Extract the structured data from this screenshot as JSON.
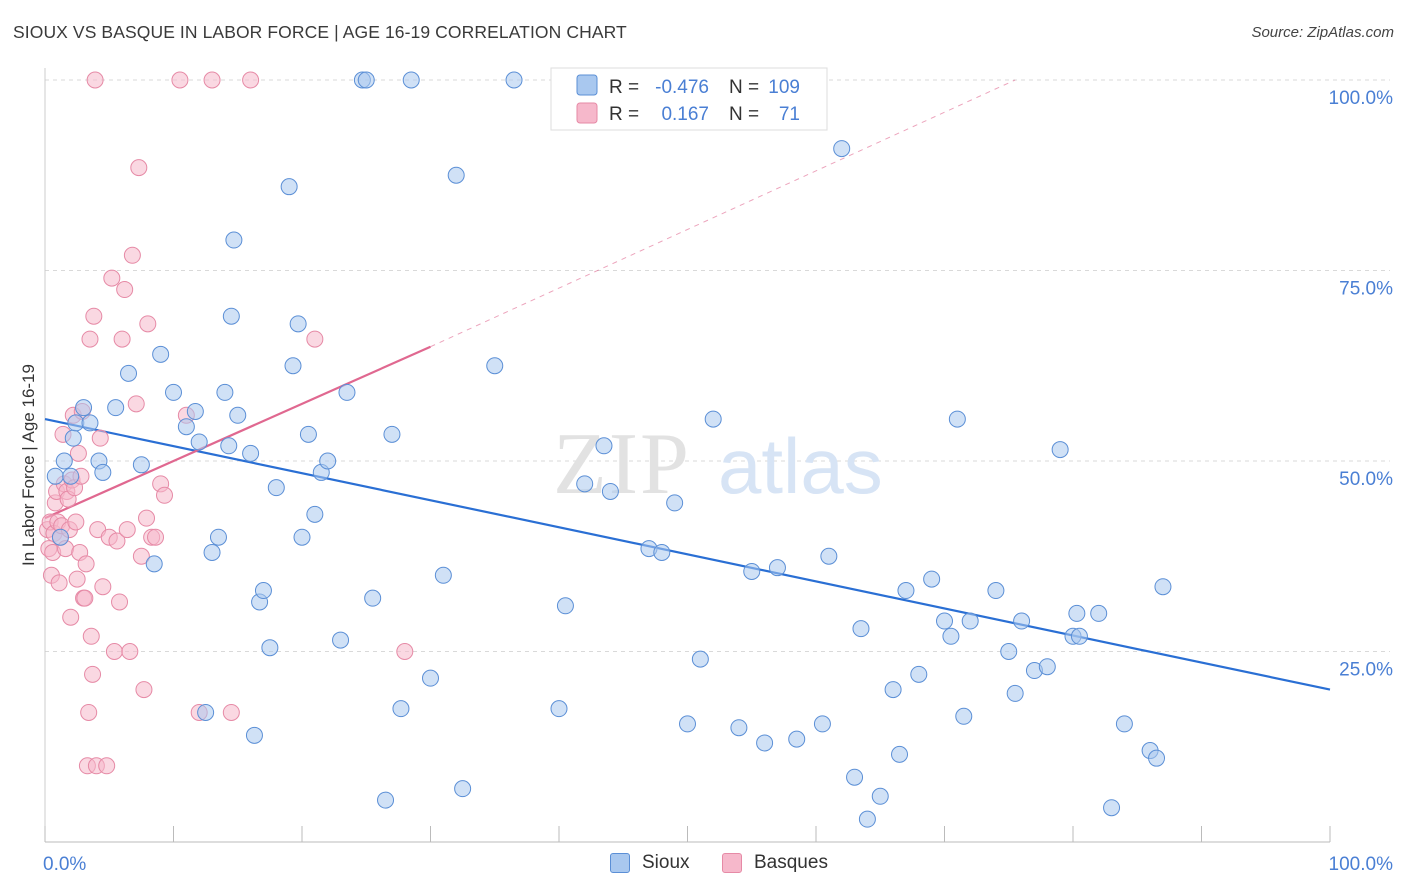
{
  "header": {
    "title": "SIOUX VS BASQUE IN LABOR FORCE | AGE 16-19 CORRELATION CHART",
    "source": "Source: ZipAtlas.com"
  },
  "watermark": {
    "zip": "ZIP",
    "atlas": "atlas"
  },
  "colors": {
    "sioux_fill": "#a9c8ef",
    "sioux_stroke": "#5b8fd6",
    "sioux_line": "#2a6fd4",
    "basques_fill": "#f6b8cb",
    "basques_stroke": "#e68aa6",
    "basques_line": "#e06890",
    "axis_label": "#4a7fd4",
    "grid": "#d9d9d9"
  },
  "legend": {
    "rows": [
      {
        "r_label": "R =",
        "r_value": "-0.476",
        "n_label": "N =",
        "n_value": "109"
      },
      {
        "r_label": "R =",
        "r_value": "0.167",
        "n_label": "N =",
        "n_value": "71"
      }
    ]
  },
  "bottom_legend": {
    "sioux": "Sioux",
    "basques": "Basques"
  },
  "chart_data": {
    "type": "scatter",
    "title": "SIOUX VS BASQUE IN LABOR FORCE | AGE 16-19 CORRELATION CHART",
    "xlabel": "",
    "ylabel": "In Labor Force | Age 16-19",
    "xlim": [
      0,
      100
    ],
    "ylim": [
      0,
      100
    ],
    "x_tick_labels": {
      "left": "0.0%",
      "right": "100.0%"
    },
    "y_ticks": [
      25,
      50,
      75,
      100
    ],
    "y_tick_labels": [
      "25.0%",
      "50.0%",
      "75.0%",
      "100.0%"
    ],
    "grid": true,
    "series": [
      {
        "name": "Sioux",
        "r": -0.476,
        "n": 109,
        "trend": {
          "x": [
            0,
            100
          ],
          "y": [
            55.5,
            20
          ]
        },
        "points": [
          [
            0.8,
            48
          ],
          [
            1.2,
            40
          ],
          [
            1.5,
            50
          ],
          [
            2,
            48
          ],
          [
            2.2,
            53
          ],
          [
            2.4,
            55
          ],
          [
            3,
            57
          ],
          [
            3.5,
            55
          ],
          [
            4.2,
            50
          ],
          [
            4.5,
            48.5
          ],
          [
            5.5,
            57
          ],
          [
            6.5,
            61.5
          ],
          [
            7.5,
            49.5
          ],
          [
            8.5,
            36.5
          ],
          [
            9,
            64
          ],
          [
            10,
            59
          ],
          [
            11,
            54.5
          ],
          [
            11.7,
            56.5
          ],
          [
            12,
            52.5
          ],
          [
            12.5,
            17
          ],
          [
            13,
            38
          ],
          [
            13.5,
            40
          ],
          [
            14,
            59
          ],
          [
            14.3,
            52
          ],
          [
            14.5,
            69
          ],
          [
            14.7,
            79
          ],
          [
            15,
            56
          ],
          [
            16,
            51
          ],
          [
            16.3,
            14
          ],
          [
            16.7,
            31.5
          ],
          [
            17,
            33
          ],
          [
            17.5,
            25.5
          ],
          [
            18,
            46.5
          ],
          [
            19,
            86
          ],
          [
            19.3,
            62.5
          ],
          [
            19.7,
            68
          ],
          [
            20,
            40
          ],
          [
            20.5,
            53.5
          ],
          [
            21,
            43
          ],
          [
            21.5,
            48.5
          ],
          [
            22,
            50
          ],
          [
            23,
            26.5
          ],
          [
            23.5,
            59
          ],
          [
            24.7,
            100
          ],
          [
            25,
            100
          ],
          [
            25.5,
            32
          ],
          [
            26.5,
            5.5
          ],
          [
            27,
            53.5
          ],
          [
            27.7,
            17.5
          ],
          [
            28.5,
            100
          ],
          [
            30,
            21.5
          ],
          [
            31,
            35
          ],
          [
            32,
            87.5
          ],
          [
            32.5,
            7
          ],
          [
            35,
            62.5
          ],
          [
            36.5,
            100
          ],
          [
            40,
            17.5
          ],
          [
            40.5,
            31
          ],
          [
            42,
            47
          ],
          [
            43.5,
            52
          ],
          [
            44,
            46
          ],
          [
            45,
            100
          ],
          [
            47,
            38.5
          ],
          [
            48,
            38
          ],
          [
            49,
            44.5
          ],
          [
            50,
            15.5
          ],
          [
            51,
            24
          ],
          [
            52,
            55.5
          ],
          [
            54,
            15
          ],
          [
            55,
            35.5
          ],
          [
            56,
            13
          ],
          [
            57,
            36
          ],
          [
            58.5,
            13.5
          ],
          [
            60.5,
            15.5
          ],
          [
            61,
            37.5
          ],
          [
            62,
            91
          ],
          [
            63,
            8.5
          ],
          [
            63.5,
            28
          ],
          [
            64,
            3
          ],
          [
            65,
            6
          ],
          [
            66,
            20
          ],
          [
            66.5,
            11.5
          ],
          [
            67,
            33
          ],
          [
            68,
            22
          ],
          [
            69,
            34.5
          ],
          [
            70,
            29
          ],
          [
            70.5,
            27
          ],
          [
            71,
            55.5
          ],
          [
            71.5,
            16.5
          ],
          [
            72,
            29
          ],
          [
            74,
            33
          ],
          [
            75,
            25
          ],
          [
            75.5,
            19.5
          ],
          [
            76,
            29
          ],
          [
            77,
            22.5
          ],
          [
            78,
            23
          ],
          [
            79,
            51.5
          ],
          [
            80,
            27
          ],
          [
            80.3,
            30
          ],
          [
            80.5,
            27
          ],
          [
            82,
            30
          ],
          [
            83,
            4.5
          ],
          [
            84,
            15.5
          ],
          [
            86,
            12
          ],
          [
            86.5,
            11
          ],
          [
            87,
            33.5
          ]
        ]
      },
      {
        "name": "Basques",
        "r": 0.167,
        "n": 71,
        "trend": {
          "x": [
            0,
            30
          ],
          "y": [
            42.5,
            65
          ]
        },
        "trend_ext": {
          "x": [
            30,
            75.5
          ],
          "y": [
            65,
            100
          ]
        },
        "points": [
          [
            0.2,
            41
          ],
          [
            0.3,
            38.5
          ],
          [
            0.4,
            42
          ],
          [
            0.5,
            35
          ],
          [
            0.6,
            38
          ],
          [
            0.7,
            40.5
          ],
          [
            0.8,
            44.5
          ],
          [
            0.9,
            46
          ],
          [
            1,
            42
          ],
          [
            1.1,
            34
          ],
          [
            1.2,
            40
          ],
          [
            1.3,
            41.5
          ],
          [
            1.4,
            53.5
          ],
          [
            1.5,
            47
          ],
          [
            1.6,
            38.5
          ],
          [
            1.7,
            46
          ],
          [
            1.8,
            45
          ],
          [
            1.9,
            41
          ],
          [
            2,
            29.5
          ],
          [
            2.1,
            47.5
          ],
          [
            2.2,
            56
          ],
          [
            2.3,
            46.5
          ],
          [
            2.4,
            42
          ],
          [
            2.5,
            34.5
          ],
          [
            2.6,
            51
          ],
          [
            2.7,
            38
          ],
          [
            2.8,
            48
          ],
          [
            2.9,
            56.5
          ],
          [
            3,
            32
          ],
          [
            3.1,
            32
          ],
          [
            3.2,
            36.5
          ],
          [
            3.3,
            10
          ],
          [
            3.4,
            17
          ],
          [
            3.5,
            66
          ],
          [
            3.6,
            27
          ],
          [
            3.7,
            22
          ],
          [
            3.8,
            69
          ],
          [
            3.9,
            100
          ],
          [
            4,
            10
          ],
          [
            4.1,
            41
          ],
          [
            4.3,
            53
          ],
          [
            4.5,
            33.5
          ],
          [
            4.8,
            10
          ],
          [
            5,
            40
          ],
          [
            5.2,
            74
          ],
          [
            5.4,
            25
          ],
          [
            5.6,
            39.5
          ],
          [
            5.8,
            31.5
          ],
          [
            6,
            66
          ],
          [
            6.2,
            72.5
          ],
          [
            6.4,
            41
          ],
          [
            6.6,
            25
          ],
          [
            6.8,
            77
          ],
          [
            7.1,
            57.5
          ],
          [
            7.3,
            88.5
          ],
          [
            7.5,
            37.5
          ],
          [
            7.7,
            20
          ],
          [
            7.9,
            42.5
          ],
          [
            8,
            68
          ],
          [
            8.3,
            40
          ],
          [
            8.6,
            40
          ],
          [
            9,
            47
          ],
          [
            9.3,
            45.5
          ],
          [
            10.5,
            100
          ],
          [
            11,
            56
          ],
          [
            12,
            17
          ],
          [
            13,
            100
          ],
          [
            14.5,
            17
          ],
          [
            16,
            100
          ],
          [
            21,
            66
          ],
          [
            28,
            25
          ]
        ]
      }
    ]
  }
}
